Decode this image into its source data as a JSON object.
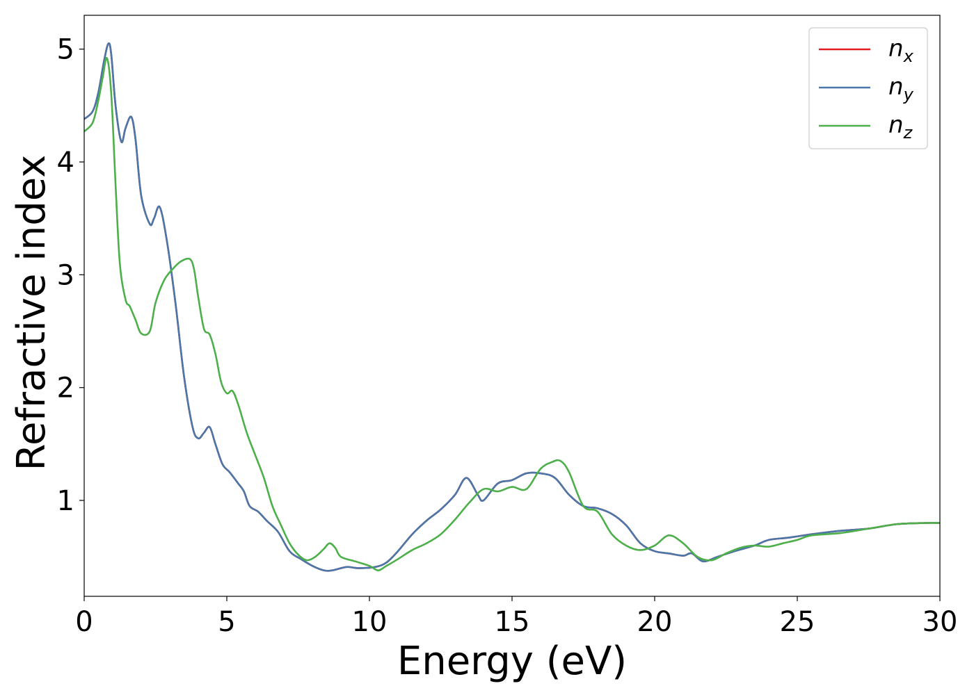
{
  "chart_data": {
    "type": "line",
    "title": "",
    "xlabel": "Energy (eV)",
    "ylabel": "Refractive index",
    "xlim": [
      0,
      30
    ],
    "ylim": [
      0.15,
      5.3
    ],
    "xticks": [
      0,
      5,
      10,
      15,
      20,
      25,
      30
    ],
    "xtick_labels": [
      "0",
      "5",
      "10",
      "15",
      "20",
      "25",
      "30"
    ],
    "yticks": [
      1,
      2,
      3,
      4,
      5
    ],
    "ytick_labels": [
      "1",
      "2",
      "3",
      "4",
      "5"
    ],
    "grid": false,
    "legend_position": "top-right",
    "series": [
      {
        "name": "n_x",
        "base": "n",
        "sub": "x",
        "color": "#e41a1c",
        "x": [
          0,
          0.3,
          0.5,
          0.7,
          0.85,
          0.95,
          1.1,
          1.3,
          1.45,
          1.65,
          1.8,
          2.0,
          2.3,
          2.45,
          2.65,
          2.9,
          3.2,
          3.5,
          3.8,
          4.0,
          4.2,
          4.4,
          4.6,
          4.85,
          5.1,
          5.4,
          5.6,
          5.8,
          6.1,
          6.4,
          6.8,
          7.2,
          7.6,
          8.0,
          8.4,
          8.7,
          9.2,
          9.6,
          10.2,
          10.6,
          11.0,
          11.5,
          12.0,
          12.5,
          13.0,
          13.4,
          13.8,
          14.0,
          14.5,
          15.0,
          15.5,
          16.0,
          16.5,
          17.0,
          17.5,
          18.0,
          18.5,
          19.0,
          19.5,
          20.0,
          20.5,
          21.0,
          21.3,
          21.7,
          22.2,
          22.8,
          23.5,
          24.0,
          24.7,
          25.5,
          26.5,
          27.5,
          28.5,
          29.5,
          30
        ],
        "y": [
          4.38,
          4.45,
          4.62,
          4.9,
          5.05,
          4.95,
          4.5,
          4.18,
          4.3,
          4.4,
          4.2,
          3.7,
          3.45,
          3.5,
          3.6,
          3.3,
          2.75,
          2.1,
          1.65,
          1.55,
          1.6,
          1.65,
          1.5,
          1.32,
          1.25,
          1.15,
          1.08,
          0.95,
          0.9,
          0.82,
          0.72,
          0.55,
          0.48,
          0.42,
          0.38,
          0.38,
          0.41,
          0.4,
          0.41,
          0.45,
          0.55,
          0.7,
          0.82,
          0.92,
          1.05,
          1.2,
          1.05,
          1.0,
          1.15,
          1.18,
          1.24,
          1.24,
          1.2,
          1.05,
          0.95,
          0.93,
          0.88,
          0.78,
          0.62,
          0.55,
          0.53,
          0.51,
          0.53,
          0.46,
          0.5,
          0.55,
          0.6,
          0.65,
          0.67,
          0.7,
          0.73,
          0.75,
          0.79,
          0.8,
          0.8
        ]
      },
      {
        "name": "n_y",
        "base": "n",
        "sub": "y",
        "color": "#4a77aa",
        "x": [
          0,
          0.3,
          0.5,
          0.7,
          0.85,
          0.95,
          1.1,
          1.3,
          1.45,
          1.65,
          1.8,
          2.0,
          2.3,
          2.45,
          2.65,
          2.9,
          3.2,
          3.5,
          3.8,
          4.0,
          4.2,
          4.4,
          4.6,
          4.85,
          5.1,
          5.4,
          5.6,
          5.8,
          6.1,
          6.4,
          6.8,
          7.2,
          7.6,
          8.0,
          8.4,
          8.7,
          9.2,
          9.6,
          10.2,
          10.6,
          11.0,
          11.5,
          12.0,
          12.5,
          13.0,
          13.4,
          13.8,
          14.0,
          14.5,
          15.0,
          15.5,
          16.0,
          16.5,
          17.0,
          17.5,
          18.0,
          18.5,
          19.0,
          19.5,
          20.0,
          20.5,
          21.0,
          21.3,
          21.7,
          22.2,
          22.8,
          23.5,
          24.0,
          24.7,
          25.5,
          26.5,
          27.5,
          28.5,
          29.5,
          30
        ],
        "y": [
          4.38,
          4.45,
          4.62,
          4.9,
          5.05,
          4.95,
          4.5,
          4.18,
          4.3,
          4.4,
          4.2,
          3.7,
          3.45,
          3.5,
          3.6,
          3.3,
          2.75,
          2.1,
          1.65,
          1.55,
          1.6,
          1.65,
          1.5,
          1.32,
          1.25,
          1.15,
          1.08,
          0.95,
          0.9,
          0.82,
          0.72,
          0.55,
          0.48,
          0.42,
          0.38,
          0.38,
          0.41,
          0.4,
          0.41,
          0.45,
          0.55,
          0.7,
          0.82,
          0.92,
          1.05,
          1.2,
          1.05,
          1.0,
          1.15,
          1.18,
          1.24,
          1.24,
          1.2,
          1.05,
          0.95,
          0.93,
          0.88,
          0.78,
          0.62,
          0.55,
          0.53,
          0.51,
          0.53,
          0.46,
          0.5,
          0.55,
          0.6,
          0.65,
          0.67,
          0.7,
          0.73,
          0.75,
          0.79,
          0.8,
          0.8
        ]
      },
      {
        "name": "n_z",
        "base": "n",
        "sub": "z",
        "color": "#4daf4a",
        "x": [
          0,
          0.3,
          0.5,
          0.65,
          0.8,
          0.95,
          1.1,
          1.25,
          1.45,
          1.6,
          1.8,
          2.0,
          2.3,
          2.5,
          2.8,
          3.1,
          3.4,
          3.7,
          3.85,
          4.0,
          4.2,
          4.4,
          4.6,
          4.8,
          5.0,
          5.2,
          5.4,
          5.7,
          6.0,
          6.3,
          6.6,
          6.9,
          7.2,
          7.5,
          7.8,
          8.1,
          8.4,
          8.6,
          8.8,
          9.0,
          9.5,
          10.0,
          10.3,
          10.6,
          11.0,
          11.5,
          12.0,
          12.5,
          13.0,
          13.5,
          14.0,
          14.5,
          15.0,
          15.5,
          16.0,
          16.4,
          16.7,
          17.0,
          17.5,
          18.0,
          18.5,
          19.0,
          19.5,
          20.0,
          20.5,
          21.0,
          21.5,
          22.0,
          22.5,
          23.0,
          23.5,
          24.0,
          24.5,
          25.0,
          25.5,
          26.5,
          27.5,
          28.5,
          29.5,
          30
        ],
        "y": [
          4.27,
          4.35,
          4.55,
          4.75,
          4.92,
          4.6,
          3.8,
          3.1,
          2.78,
          2.72,
          2.6,
          2.48,
          2.5,
          2.75,
          2.95,
          3.05,
          3.12,
          3.14,
          3.05,
          2.8,
          2.52,
          2.47,
          2.3,
          2.05,
          1.95,
          1.97,
          1.85,
          1.6,
          1.4,
          1.2,
          0.95,
          0.78,
          0.62,
          0.52,
          0.47,
          0.5,
          0.57,
          0.62,
          0.58,
          0.5,
          0.46,
          0.42,
          0.38,
          0.42,
          0.48,
          0.56,
          0.62,
          0.7,
          0.83,
          0.98,
          1.1,
          1.08,
          1.12,
          1.1,
          1.28,
          1.34,
          1.35,
          1.25,
          0.95,
          0.9,
          0.7,
          0.6,
          0.56,
          0.6,
          0.69,
          0.62,
          0.5,
          0.47,
          0.53,
          0.58,
          0.6,
          0.59,
          0.62,
          0.65,
          0.69,
          0.71,
          0.75,
          0.79,
          0.8,
          0.8
        ]
      }
    ]
  }
}
